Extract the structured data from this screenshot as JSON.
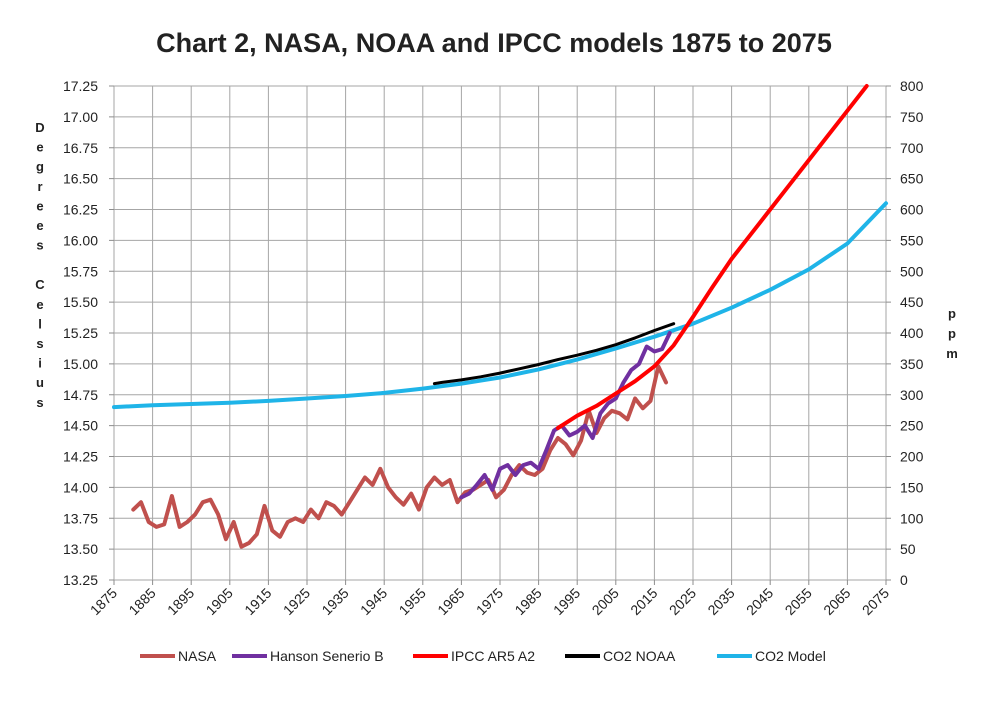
{
  "chart_data": {
    "type": "line",
    "title": "Chart 2, NASA, NOAA and IPCC models 1875 to 2075",
    "ylabel_left": "Degrees Celsius",
    "ylabel_right": "ppm",
    "xlim": [
      1875,
      2075
    ],
    "ylim_left": [
      13.25,
      17.25
    ],
    "ylim_right": [
      0,
      800
    ],
    "grid": true,
    "legend_position": "bottom",
    "x_ticks": [
      "1875",
      "1885",
      "1895",
      "1905",
      "1915",
      "1925",
      "1935",
      "1945",
      "1955",
      "1965",
      "1975",
      "1985",
      "1995",
      "2005",
      "2015",
      "2025",
      "2035",
      "2045",
      "2055",
      "2065",
      "2075"
    ],
    "y_left_ticks": [
      "13.25",
      "13.50",
      "13.75",
      "14.00",
      "14.25",
      "14.50",
      "14.75",
      "15.00",
      "15.25",
      "15.50",
      "15.75",
      "16.00",
      "16.25",
      "16.50",
      "16.75",
      "17.00",
      "17.25"
    ],
    "y_right_ticks": [
      "0",
      "50",
      "100",
      "150",
      "200",
      "250",
      "300",
      "350",
      "400",
      "450",
      "500",
      "550",
      "600",
      "650",
      "700",
      "750",
      "800"
    ],
    "series": [
      {
        "name": "NASA",
        "axis": "left",
        "color": "#c0504d",
        "x": [
          1880,
          1882,
          1884,
          1886,
          1888,
          1890,
          1892,
          1894,
          1896,
          1898,
          1900,
          1902,
          1904,
          1906,
          1908,
          1910,
          1912,
          1914,
          1916,
          1918,
          1920,
          1922,
          1924,
          1926,
          1928,
          1930,
          1932,
          1934,
          1936,
          1938,
          1940,
          1942,
          1944,
          1946,
          1948,
          1950,
          1952,
          1954,
          1956,
          1958,
          1960,
          1962,
          1964,
          1966,
          1968,
          1970,
          1972,
          1974,
          1976,
          1978,
          1980,
          1982,
          1984,
          1986,
          1988,
          1990,
          1992,
          1994,
          1996,
          1998,
          2000,
          2002,
          2004,
          2006,
          2008,
          2010,
          2012,
          2014,
          2016,
          2018
        ],
        "y": [
          13.82,
          13.88,
          13.72,
          13.68,
          13.7,
          13.93,
          13.68,
          13.72,
          13.78,
          13.88,
          13.9,
          13.78,
          13.58,
          13.72,
          13.52,
          13.55,
          13.62,
          13.85,
          13.65,
          13.6,
          13.72,
          13.75,
          13.72,
          13.82,
          13.75,
          13.88,
          13.85,
          13.78,
          13.88,
          13.98,
          14.08,
          14.02,
          14.15,
          14.0,
          13.92,
          13.86,
          13.95,
          13.82,
          14.0,
          14.08,
          14.02,
          14.06,
          13.88,
          13.96,
          13.98,
          14.02,
          14.06,
          13.92,
          13.98,
          14.1,
          14.18,
          14.12,
          14.1,
          14.15,
          14.3,
          14.4,
          14.35,
          14.26,
          14.38,
          14.62,
          14.44,
          14.56,
          14.62,
          14.6,
          14.55,
          14.72,
          14.64,
          14.7,
          14.98,
          14.85
        ]
      },
      {
        "name": "Hanson Senerio B",
        "axis": "left",
        "color": "#7030a0",
        "x": [
          1965,
          1967,
          1969,
          1971,
          1973,
          1975,
          1977,
          1979,
          1981,
          1983,
          1985,
          1987,
          1989,
          1991,
          1993,
          1995,
          1997,
          1999,
          2001,
          2003,
          2005,
          2007,
          2009,
          2011,
          2013,
          2015,
          2017,
          2019
        ],
        "y": [
          13.92,
          13.95,
          14.02,
          14.1,
          13.98,
          14.15,
          14.18,
          14.1,
          14.18,
          14.2,
          14.15,
          14.3,
          14.46,
          14.5,
          14.42,
          14.45,
          14.5,
          14.4,
          14.6,
          14.68,
          14.72,
          14.85,
          14.95,
          15.0,
          15.14,
          15.1,
          15.12,
          15.25
        ]
      },
      {
        "name": "IPCC AR5 A2",
        "axis": "left",
        "color": "#ff0000",
        "x": [
          1990,
          1995,
          2000,
          2005,
          2010,
          2015,
          2020,
          2025,
          2030,
          2035,
          2040,
          2045,
          2050,
          2055,
          2060,
          2065,
          2070
        ],
        "y": [
          14.48,
          14.58,
          14.66,
          14.76,
          14.86,
          14.98,
          15.15,
          15.38,
          15.62,
          15.85,
          16.05,
          16.25,
          16.45,
          16.65,
          16.85,
          17.05,
          17.25
        ]
      },
      {
        "name": "CO2 NOAA",
        "axis": "right",
        "color": "#000000",
        "x": [
          1958,
          1960,
          1965,
          1970,
          1975,
          1980,
          1985,
          1990,
          1995,
          2000,
          2005,
          2010,
          2015,
          2020
        ],
        "y": [
          318,
          320,
          324,
          329,
          335,
          342,
          349,
          357,
          364,
          372,
          381,
          392,
          404,
          415
        ]
      },
      {
        "name": "CO2 Model",
        "axis": "right",
        "color": "#1fb4e8",
        "x": [
          1875,
          1885,
          1895,
          1905,
          1915,
          1925,
          1935,
          1945,
          1955,
          1965,
          1975,
          1985,
          1995,
          2005,
          2015,
          2025,
          2035,
          2045,
          2055,
          2065,
          2075
        ],
        "y": [
          280,
          283,
          285,
          287,
          290,
          294,
          298,
          303,
          310,
          318,
          328,
          341,
          357,
          375,
          394,
          415,
          441,
          470,
          503,
          545,
          610
        ]
      }
    ]
  }
}
